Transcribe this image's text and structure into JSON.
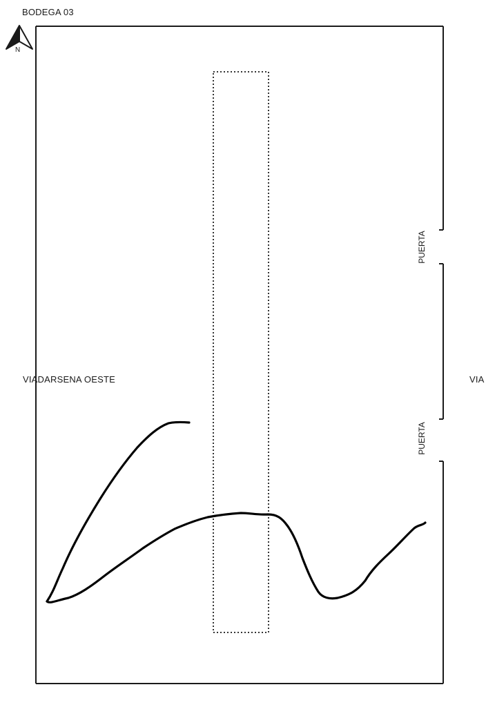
{
  "plan": {
    "title": "BODEGA 03",
    "north_letter": "N",
    "west_road_label": "VIADARSENA OESTE",
    "east_road_label": "VIA",
    "doors": [
      {
        "label": "PUERTA"
      },
      {
        "label": "PUERTA"
      }
    ]
  },
  "colors": {
    "wall": "#1a1a1a",
    "dotted": "#333333",
    "drawing": "#000000",
    "background": "#ffffff"
  },
  "icons": {
    "north_arrow": "north-arrow-icon"
  }
}
